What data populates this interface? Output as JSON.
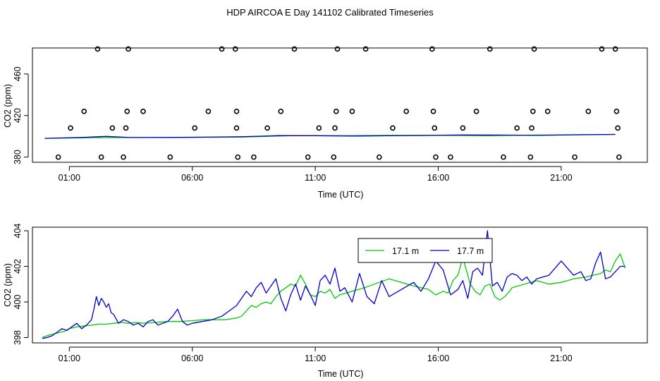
{
  "title": "HDP AIRCOA E  Day 141102  Calibrated Timeseries",
  "chart_data": [
    {
      "type": "scatter",
      "xlabel": "Time (UTC)",
      "ylabel": "CO2 (ppm)",
      "xlim": [
        -0.5,
        24.5
      ],
      "ylim": [
        375,
        485
      ],
      "x_ticks": [
        1,
        6,
        11,
        16,
        21
      ],
      "x_tick_labels": [
        "01:00",
        "06:00",
        "11:00",
        "16:00",
        "21:00"
      ],
      "y_ticks": [
        380,
        420,
        460
      ],
      "y_tick_labels": [
        "380",
        "420",
        "460"
      ],
      "grid": false,
      "reference_points": [
        {
          "x": 0.55,
          "y": 380
        },
        {
          "x": 1.05,
          "y": 408
        },
        {
          "x": 1.6,
          "y": 424
        },
        {
          "x": 2.15,
          "y": 484
        },
        {
          "x": 2.3,
          "y": 380
        },
        {
          "x": 2.75,
          "y": 408
        },
        {
          "x": 3.2,
          "y": 380
        },
        {
          "x": 3.3,
          "y": 408
        },
        {
          "x": 3.35,
          "y": 424
        },
        {
          "x": 3.4,
          "y": 484
        },
        {
          "x": 4.0,
          "y": 424
        },
        {
          "x": 5.1,
          "y": 380
        },
        {
          "x": 6.1,
          "y": 408
        },
        {
          "x": 6.65,
          "y": 424
        },
        {
          "x": 7.2,
          "y": 484
        },
        {
          "x": 7.75,
          "y": 484
        },
        {
          "x": 7.8,
          "y": 424
        },
        {
          "x": 7.8,
          "y": 408
        },
        {
          "x": 7.85,
          "y": 380
        },
        {
          "x": 8.5,
          "y": 380
        },
        {
          "x": 9.05,
          "y": 408
        },
        {
          "x": 9.6,
          "y": 424
        },
        {
          "x": 10.15,
          "y": 484
        },
        {
          "x": 10.7,
          "y": 380
        },
        {
          "x": 11.15,
          "y": 408
        },
        {
          "x": 11.75,
          "y": 380
        },
        {
          "x": 11.8,
          "y": 408
        },
        {
          "x": 11.85,
          "y": 424
        },
        {
          "x": 11.9,
          "y": 484
        },
        {
          "x": 12.5,
          "y": 424
        },
        {
          "x": 13.05,
          "y": 484
        },
        {
          "x": 13.6,
          "y": 380
        },
        {
          "x": 14.15,
          "y": 408
        },
        {
          "x": 14.7,
          "y": 424
        },
        {
          "x": 15.75,
          "y": 484
        },
        {
          "x": 15.8,
          "y": 424
        },
        {
          "x": 15.85,
          "y": 408
        },
        {
          "x": 15.9,
          "y": 380
        },
        {
          "x": 16.5,
          "y": 380
        },
        {
          "x": 17.0,
          "y": 408
        },
        {
          "x": 17.55,
          "y": 424
        },
        {
          "x": 18.1,
          "y": 484
        },
        {
          "x": 18.65,
          "y": 380
        },
        {
          "x": 19.2,
          "y": 408
        },
        {
          "x": 19.75,
          "y": 380
        },
        {
          "x": 19.8,
          "y": 408
        },
        {
          "x": 19.85,
          "y": 424
        },
        {
          "x": 19.9,
          "y": 484
        },
        {
          "x": 20.45,
          "y": 424
        },
        {
          "x": 21.55,
          "y": 380
        },
        {
          "x": 22.1,
          "y": 424
        },
        {
          "x": 22.65,
          "y": 484
        },
        {
          "x": 23.2,
          "y": 484
        },
        {
          "x": 23.25,
          "y": 424
        },
        {
          "x": 23.3,
          "y": 408
        },
        {
          "x": 23.35,
          "y": 380
        }
      ],
      "series": [
        {
          "color": "#00cc00",
          "x": [
            0.0,
            2.0,
            4.0,
            6.0,
            8.0,
            10.0,
            12.0,
            14.0,
            16.0,
            18.0,
            20.0,
            22.0,
            23.2
          ],
          "y": [
            398.0,
            398.7,
            398.8,
            399.0,
            399.3,
            400.5,
            400.6,
            400.9,
            401.0,
            400.5,
            401.2,
            401.6,
            401.8
          ]
        },
        {
          "color": "#0000cc",
          "x": [
            0.0,
            1.5,
            2.5,
            3.5,
            5.0,
            6.5,
            8.0,
            9.5,
            11.0,
            12.5,
            14.0,
            15.5,
            17.0,
            18.5,
            20.0,
            21.5,
            23.2
          ],
          "y": [
            398.0,
            398.9,
            399.9,
            398.8,
            398.9,
            399.2,
            399.6,
            400.7,
            400.6,
            400.2,
            400.5,
            400.8,
            401.3,
            401.2,
            400.9,
            401.4,
            401.8
          ]
        }
      ]
    },
    {
      "type": "line",
      "xlabel": "Time (UTC)",
      "ylabel": "CO2 (ppm)",
      "xlim": [
        -0.5,
        24.5
      ],
      "ylim": [
        397.7,
        404.2
      ],
      "x_ticks": [
        1,
        6,
        11,
        16,
        21
      ],
      "x_tick_labels": [
        "01:00",
        "06:00",
        "11:00",
        "16:00",
        "21:00"
      ],
      "y_ticks": [
        398,
        400,
        402,
        404
      ],
      "y_tick_labels": [
        "398",
        "400",
        "402",
        "404"
      ],
      "grid": false,
      "legend_position": "top-center",
      "series": [
        {
          "name": "17.1 m",
          "color": "#00cc00",
          "x": [
            -0.1,
            0.2,
            0.5,
            0.8,
            1.0,
            1.3,
            1.6,
            1.9,
            2.2,
            2.5,
            2.8,
            3.1,
            3.4,
            3.7,
            4.0,
            4.5,
            5.0,
            5.5,
            6.0,
            6.5,
            7.0,
            7.3,
            7.6,
            7.8,
            8.0,
            8.2,
            8.4,
            8.6,
            8.8,
            9.0,
            9.2,
            9.4,
            9.6,
            9.8,
            10.0,
            10.2,
            10.4,
            10.6,
            10.8,
            11.0,
            11.2,
            11.4,
            11.6,
            11.8,
            12.0,
            13.0,
            14.0,
            15.0,
            15.6,
            15.9,
            16.2,
            16.4,
            16.6,
            16.8,
            17.0,
            17.1,
            17.3,
            17.5,
            17.7,
            17.9,
            18.1,
            18.3,
            18.5,
            18.7,
            18.9,
            19.0,
            19.5,
            20.0,
            20.5,
            21.0,
            21.5,
            22.0,
            22.3,
            22.6,
            22.8,
            23.0,
            23.2,
            23.4,
            23.6
          ],
          "y": [
            398.0,
            398.15,
            398.25,
            398.35,
            398.5,
            398.6,
            398.65,
            398.7,
            398.75,
            398.75,
            398.8,
            398.85,
            398.8,
            398.85,
            398.8,
            398.85,
            398.9,
            398.9,
            398.95,
            399.0,
            399.0,
            399.0,
            399.05,
            399.1,
            399.2,
            399.5,
            399.8,
            399.7,
            399.9,
            400.0,
            399.9,
            400.3,
            400.6,
            400.8,
            401.0,
            400.9,
            401.5,
            401.0,
            400.4,
            400.3,
            400.6,
            400.5,
            400.7,
            400.2,
            400.4,
            400.8,
            401.3,
            400.9,
            400.7,
            400.4,
            400.6,
            400.5,
            401.2,
            401.5,
            402.5,
            402.0,
            401.0,
            400.6,
            400.4,
            400.9,
            401.0,
            400.3,
            400.1,
            400.3,
            400.6,
            400.8,
            401.0,
            401.2,
            401.0,
            401.1,
            401.3,
            401.4,
            401.5,
            401.6,
            401.8,
            401.7,
            402.3,
            402.7,
            401.9
          ]
        },
        {
          "name": "17.7 m",
          "color": "#0000cc",
          "x": [
            -0.1,
            0.1,
            0.3,
            0.5,
            0.7,
            0.9,
            1.1,
            1.3,
            1.5,
            1.7,
            1.9,
            2.0,
            2.1,
            2.2,
            2.3,
            2.4,
            2.5,
            2.6,
            2.7,
            2.8,
            3.0,
            3.2,
            3.4,
            3.6,
            3.8,
            4.0,
            4.2,
            4.4,
            4.6,
            4.8,
            5.0,
            5.2,
            5.4,
            5.6,
            5.8,
            6.0,
            6.4,
            6.8,
            7.2,
            7.6,
            7.8,
            8.0,
            8.2,
            8.4,
            8.6,
            8.8,
            9.0,
            9.2,
            9.4,
            9.6,
            9.8,
            10.0,
            10.2,
            10.4,
            10.6,
            10.8,
            11.0,
            11.2,
            11.4,
            11.6,
            11.8,
            12.0,
            12.2,
            12.5,
            12.8,
            13.1,
            13.4,
            13.7,
            14.0,
            15.0,
            15.3,
            15.6,
            15.9,
            16.2,
            16.5,
            16.8,
            17.0,
            17.2,
            17.4,
            17.6,
            17.8,
            18.0,
            18.2,
            18.4,
            18.6,
            18.8,
            19.0,
            19.2,
            19.4,
            19.6,
            19.8,
            20.0,
            20.5,
            21.0,
            21.5,
            21.8,
            22.0,
            22.2,
            22.4,
            22.6,
            22.8,
            23.0,
            23.2,
            23.4,
            23.6
          ],
          "y": [
            397.95,
            398.0,
            398.1,
            398.3,
            398.5,
            398.4,
            398.6,
            398.8,
            398.5,
            398.7,
            399.0,
            399.6,
            400.3,
            399.8,
            400.2,
            400.0,
            399.7,
            399.9,
            399.4,
            399.3,
            398.8,
            399.0,
            398.9,
            398.7,
            398.8,
            398.6,
            398.9,
            399.0,
            398.7,
            398.8,
            398.9,
            399.2,
            399.6,
            398.9,
            398.7,
            398.8,
            398.9,
            399.0,
            399.2,
            399.6,
            399.8,
            400.2,
            400.6,
            400.3,
            400.8,
            401.1,
            400.5,
            400.9,
            401.3,
            400.2,
            399.5,
            400.4,
            401.0,
            400.1,
            400.9,
            400.4,
            399.8,
            401.2,
            401.5,
            401.0,
            401.9,
            400.6,
            400.8,
            400.0,
            401.6,
            400.3,
            399.9,
            401.2,
            400.3,
            401.1,
            400.6,
            401.3,
            402.3,
            401.8,
            400.4,
            400.7,
            401.2,
            400.2,
            401.7,
            401.9,
            401.5,
            404.0,
            400.9,
            401.1,
            400.6,
            401.4,
            401.6,
            401.5,
            401.2,
            401.4,
            401.0,
            401.3,
            401.5,
            402.3,
            401.5,
            401.7,
            401.2,
            401.3,
            402.2,
            402.8,
            401.3,
            401.4,
            401.7,
            402.0,
            402.0
          ]
        }
      ]
    }
  ]
}
